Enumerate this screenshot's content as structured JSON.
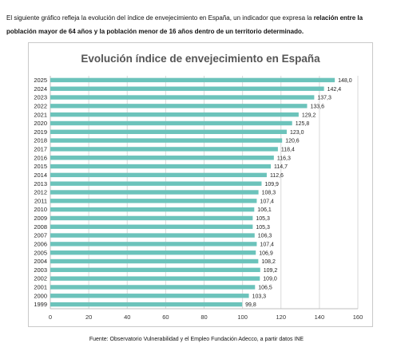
{
  "intro": {
    "text_part1": "El siguiente gráfico refleja la evolución del índice de envejecimiento en España, un indicador que expresa la ",
    "text_bold": "relación entre la población mayor de 64 años y la población menor de 16 años dentro de un territorio determinado."
  },
  "source": "Fuente: Observatorio Vulnerabilidad y el Empleo Fundación Adecco, a partir datos INE",
  "colors": {
    "bar": "#6cc3bb",
    "grid": "#d9d9d9",
    "axis": "#bfbfbf",
    "title": "#555555"
  },
  "chart_data": {
    "type": "bar",
    "orientation": "horizontal",
    "title": "Evolución índice  de envejecimiento en España",
    "xlabel": "",
    "ylabel": "",
    "xlim": [
      0,
      160
    ],
    "xticks": [
      0,
      20,
      40,
      60,
      80,
      100,
      120,
      140,
      160
    ],
    "grid": "vertical",
    "legend": "none",
    "categories": [
      "2025",
      "2024",
      "2023",
      "2022",
      "2021",
      "2020",
      "2019",
      "2018",
      "2017",
      "2016",
      "2015",
      "2014",
      "2013",
      "2012",
      "2011",
      "2010",
      "2009",
      "2008",
      "2007",
      "2006",
      "2005",
      "2004",
      "2003",
      "2002",
      "2001",
      "2000",
      "1999"
    ],
    "values": [
      148.0,
      142.4,
      137.3,
      133.6,
      129.2,
      125.8,
      123.0,
      120.6,
      118.4,
      116.3,
      114.7,
      112.6,
      109.9,
      108.3,
      107.4,
      106.1,
      105.3,
      105.3,
      106.3,
      107.4,
      106.9,
      108.2,
      109.2,
      109.0,
      106.5,
      103.3,
      99.8
    ],
    "labels": [
      "148,0",
      "142,4",
      "137,3",
      "133,6",
      "129,2",
      "125,8",
      "123,0",
      "120,6",
      "118,4",
      "116,3",
      "114,7",
      "112,6",
      "109,9",
      "108,3",
      "107,4",
      "106,1",
      "105,3",
      "105,3",
      "106,3",
      "107,4",
      "106,9",
      "108,2",
      "109,2",
      "109,0",
      "106,5",
      "103,3",
      "99,8"
    ]
  }
}
